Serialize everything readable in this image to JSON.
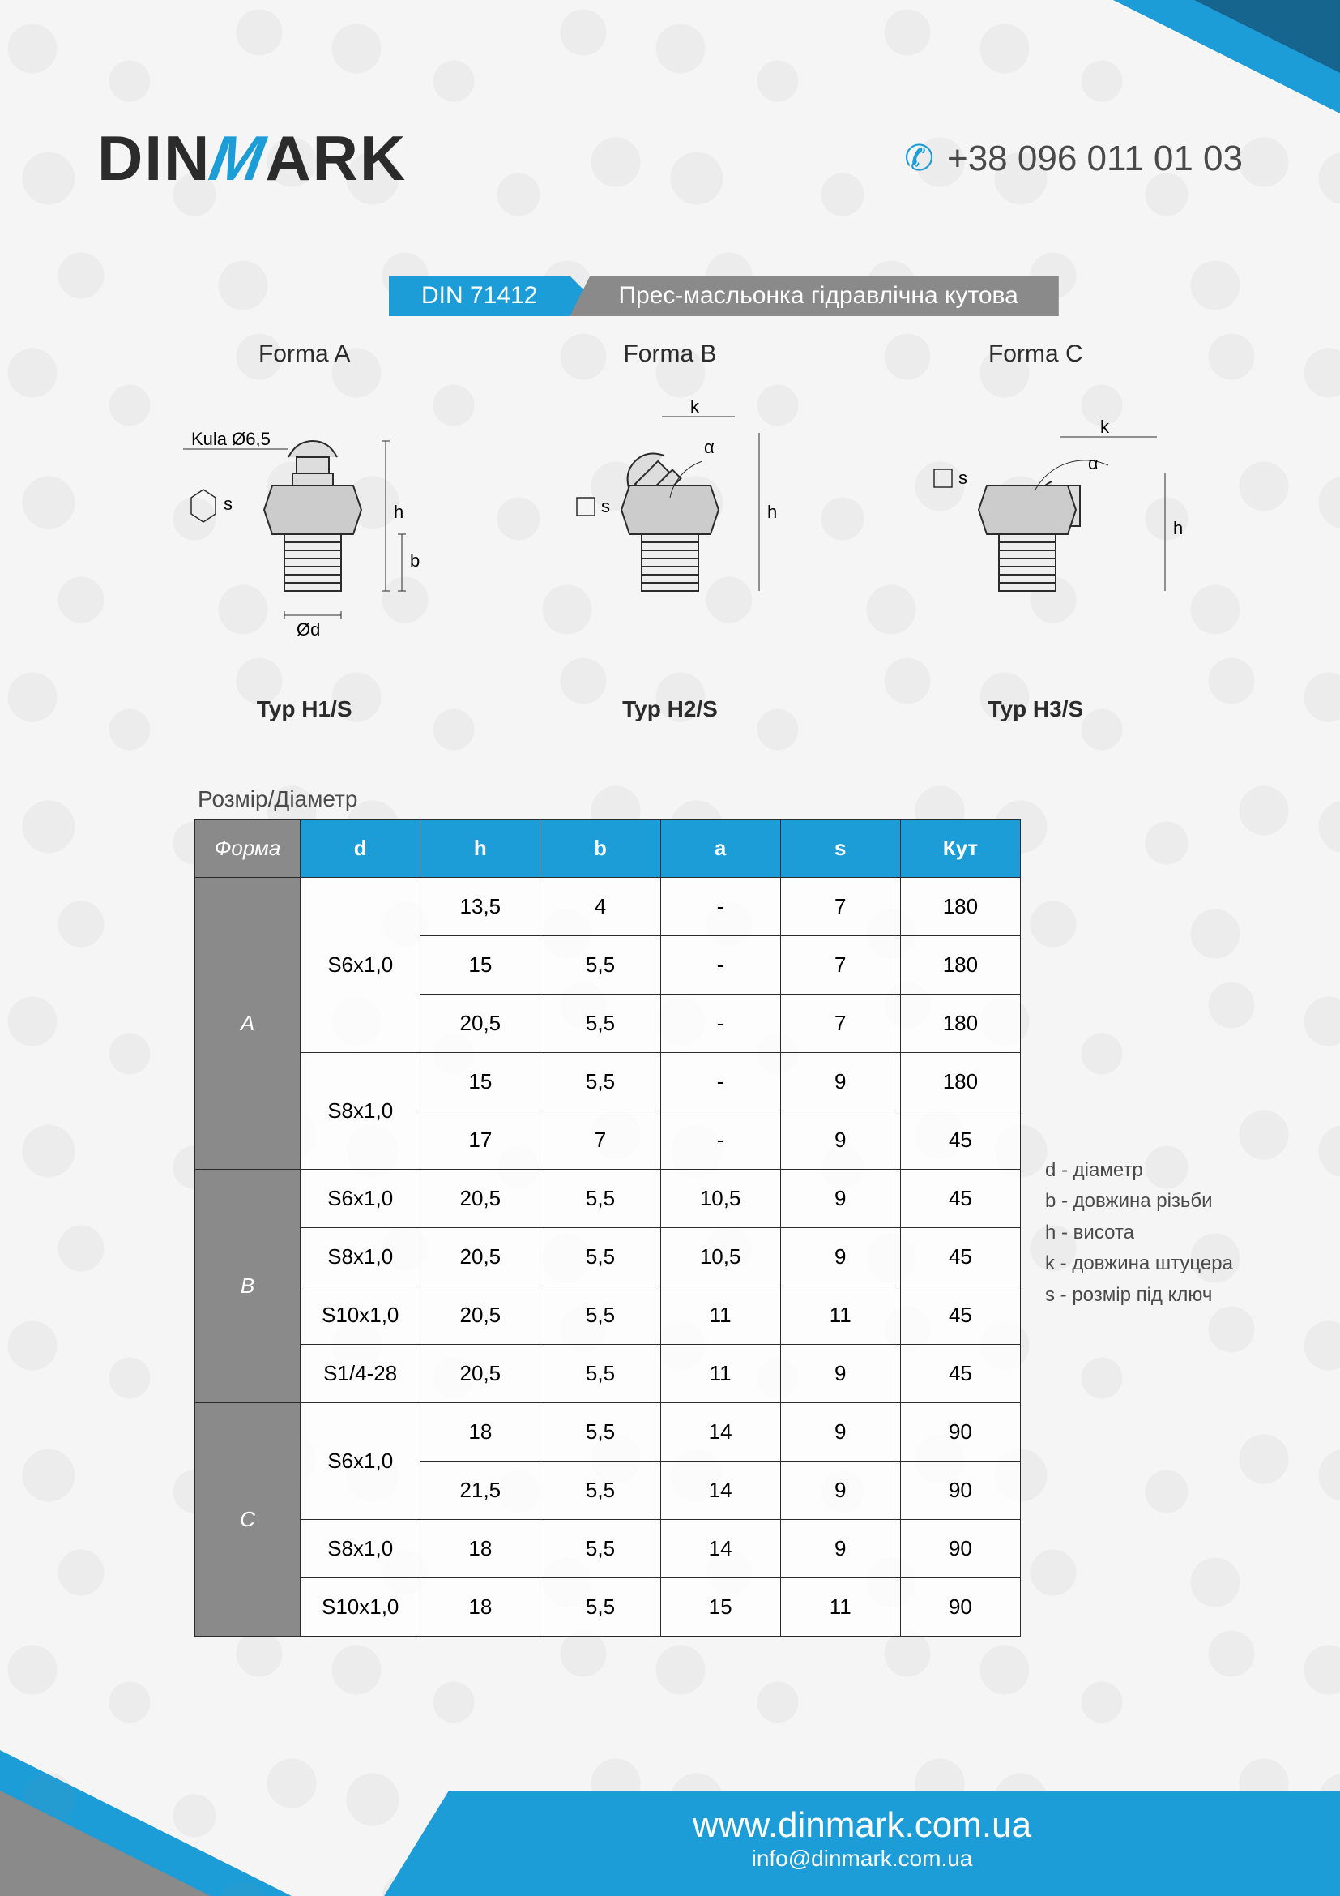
{
  "header": {
    "logo_pre": "DIN",
    "logo_m": "M",
    "logo_post": "ARK",
    "phone": "+38 096 011 01 03"
  },
  "title": {
    "code": "DIN 71412",
    "desc": "Прес-масльонка гідравлічна кутова"
  },
  "diagrams": {
    "labels": [
      "Forma A",
      "Forma B",
      "Forma C"
    ],
    "types": [
      "Typ H1/S",
      "Typ H2/S",
      "Typ H3/S"
    ],
    "a_text": {
      "kula": "Kula Ø6,5",
      "s": "s",
      "h": "h",
      "b": "b",
      "d": "Ød"
    },
    "b_text": {
      "k": "k",
      "a": "α",
      "s": "s",
      "h": "h"
    },
    "c_text": {
      "k": "k",
      "a": "α",
      "s": "s",
      "h": "h"
    }
  },
  "table": {
    "title": "Розмір/Діаметр",
    "headers": {
      "forma": "Форма",
      "d": "d",
      "h": "h",
      "b": "b",
      "a": "a",
      "s": "s",
      "kut": "Кут"
    },
    "groups": [
      {
        "forma": "A",
        "dgroups": [
          {
            "d": "S6x1,0",
            "rows": [
              {
                "h": "13,5",
                "b": "4",
                "a": "-",
                "s": "7",
                "kut": "180"
              },
              {
                "h": "15",
                "b": "5,5",
                "a": "-",
                "s": "7",
                "kut": "180"
              },
              {
                "h": "20,5",
                "b": "5,5",
                "a": "-",
                "s": "7",
                "kut": "180"
              }
            ]
          },
          {
            "d": "S8x1,0",
            "rows": [
              {
                "h": "15",
                "b": "5,5",
                "a": "-",
                "s": "9",
                "kut": "180"
              },
              {
                "h": "17",
                "b": "7",
                "a": "-",
                "s": "9",
                "kut": "45"
              }
            ]
          }
        ]
      },
      {
        "forma": "B",
        "dgroups": [
          {
            "d": "S6x1,0",
            "rows": [
              {
                "h": "20,5",
                "b": "5,5",
                "a": "10,5",
                "s": "9",
                "kut": "45"
              }
            ]
          },
          {
            "d": "S8x1,0",
            "rows": [
              {
                "h": "20,5",
                "b": "5,5",
                "a": "10,5",
                "s": "9",
                "kut": "45"
              }
            ]
          },
          {
            "d": "S10x1,0",
            "rows": [
              {
                "h": "20,5",
                "b": "5,5",
                "a": "11",
                "s": "11",
                "kut": "45"
              }
            ]
          },
          {
            "d": "S1/4-28",
            "rows": [
              {
                "h": "20,5",
                "b": "5,5",
                "a": "11",
                "s": "9",
                "kut": "45"
              }
            ]
          }
        ]
      },
      {
        "forma": "C",
        "dgroups": [
          {
            "d": "S6x1,0",
            "rows": [
              {
                "h": "18",
                "b": "5,5",
                "a": "14",
                "s": "9",
                "kut": "90"
              },
              {
                "h": "21,5",
                "b": "5,5",
                "a": "14",
                "s": "9",
                "kut": "90"
              }
            ]
          },
          {
            "d": "S8x1,0",
            "rows": [
              {
                "h": "18",
                "b": "5,5",
                "a": "14",
                "s": "9",
                "kut": "90"
              }
            ]
          },
          {
            "d": "S10x1,0",
            "rows": [
              {
                "h": "18",
                "b": "5,5",
                "a": "15",
                "s": "11",
                "kut": "90"
              }
            ]
          }
        ]
      }
    ]
  },
  "legend": {
    "d": "d - діаметр",
    "b": "b - довжина різьби",
    "h": "h - висота",
    "k": "k - довжина штуцера",
    "s": "s - розмір під ключ"
  },
  "footer": {
    "url": "www.dinmark.com.ua",
    "email": "info@dinmark.com.ua"
  },
  "colors": {
    "blue": "#1c9dd8",
    "darkblue": "#16658f",
    "grey": "#8a8a8a",
    "text": "#2b2b2b"
  }
}
